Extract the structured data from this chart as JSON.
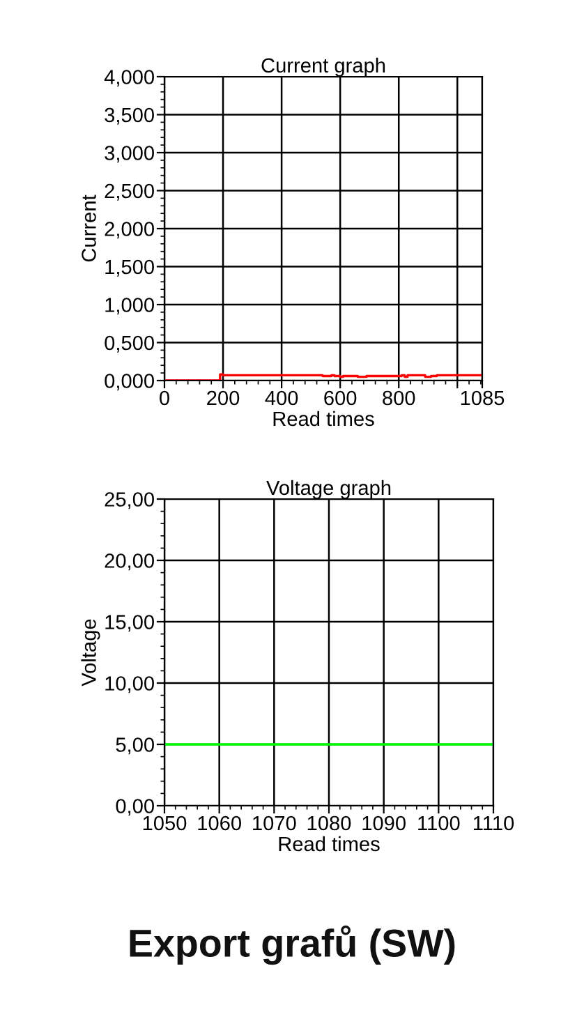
{
  "chart_data": [
    {
      "type": "step",
      "title": "Current graph",
      "xlabel": "Read times",
      "ylabel": "Current",
      "x": [
        0,
        190,
        200,
        540,
        570,
        580,
        600,
        610,
        650,
        660,
        690,
        700,
        800,
        810,
        820,
        830,
        880,
        890,
        910,
        930,
        1085
      ],
      "series": [
        {
          "color": "#ff0000",
          "values": [
            0,
            0.08,
            0.07,
            0.06,
            0.07,
            0.06,
            0.05,
            0.06,
            0.06,
            0.05,
            0.06,
            0.06,
            0.06,
            0.07,
            0.05,
            0.07,
            0.07,
            0.05,
            0.06,
            0.07,
            0.07
          ]
        }
      ],
      "xlim": [
        0,
        1085
      ],
      "xticks": [
        0,
        200,
        400,
        600,
        800,
        {
          "value": 1000,
          "label": null
        },
        1085
      ],
      "ylim": [
        0,
        4
      ],
      "yticks": [
        {
          "value": 0,
          "label": "0,000"
        },
        {
          "value": 0.5,
          "label": "0,500"
        },
        {
          "value": 1,
          "label": "1,000"
        },
        {
          "value": 1.5,
          "label": "1,500"
        },
        {
          "value": 2,
          "label": "2,000"
        },
        {
          "value": 2.5,
          "label": "2,500"
        },
        {
          "value": 3,
          "label": "3,000"
        },
        {
          "value": 3.5,
          "label": "3,500"
        },
        {
          "value": 4,
          "label": "4,000"
        }
      ],
      "grid": true,
      "line_style": "solid"
    },
    {
      "type": "line",
      "title": "Voltage graph",
      "xlabel": "Read times",
      "ylabel": "Voltage",
      "x": [
        1050,
        1110
      ],
      "series": [
        {
          "color": "#00ff00",
          "values": [
            5,
            5
          ]
        }
      ],
      "xlim": [
        1050,
        1110
      ],
      "xticks": [
        1050,
        1060,
        1070,
        1080,
        1090,
        1100,
        1110
      ],
      "ylim": [
        0,
        25
      ],
      "yticks": [
        {
          "value": 0,
          "label": "0,00"
        },
        {
          "value": 5,
          "label": "5,00"
        },
        {
          "value": 10,
          "label": "10,00"
        },
        {
          "value": 15,
          "label": "15,00"
        },
        {
          "value": 20,
          "label": "20,00"
        },
        {
          "value": 25,
          "label": "25,00"
        }
      ],
      "grid": true,
      "line_style": "solid",
      "annotations": [
        "Export grafů (SW)"
      ]
    }
  ]
}
